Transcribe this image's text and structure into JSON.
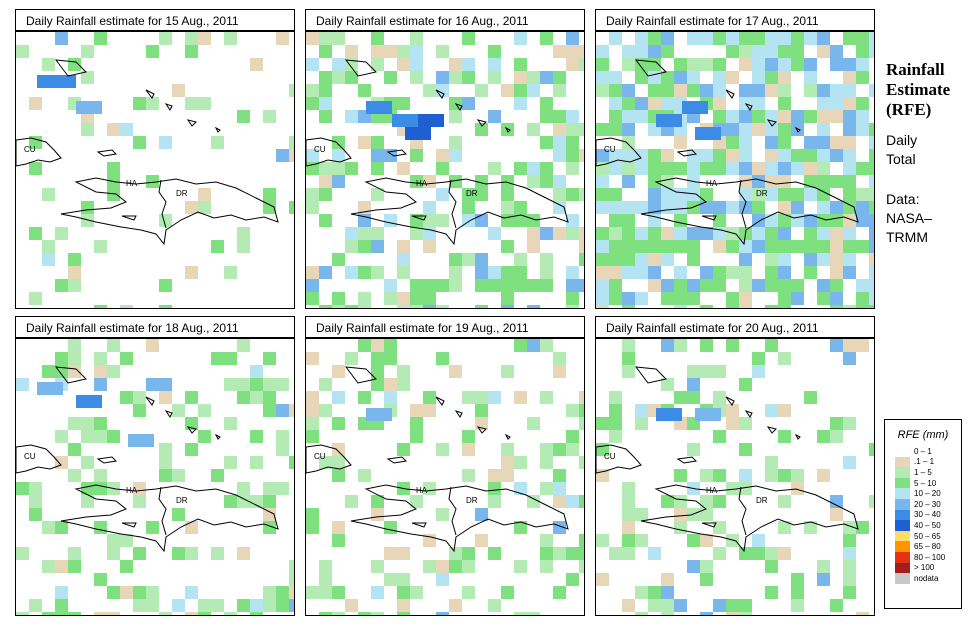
{
  "panels": [
    {
      "title": "Daily Rainfall estimate for  15 Aug., 2011",
      "density": 0.14,
      "wet": 0.05,
      "hot": [
        [
          1,
          3,
          3
        ],
        [
          2,
          3,
          3
        ],
        [
          4,
          5,
          2
        ]
      ],
      "seed": 15
    },
    {
      "title": "Daily Rainfall estimate for  16 Aug., 2011",
      "density": 0.46,
      "wet": 0.25,
      "hot": [
        [
          7,
          7,
          4
        ],
        [
          8,
          6,
          4
        ],
        [
          6,
          6,
          3
        ],
        [
          4,
          5,
          3
        ]
      ],
      "seed": 16
    },
    {
      "title": "Daily Rainfall estimate for  17 Aug., 2011",
      "density": 0.78,
      "wet": 0.42,
      "hot": [
        [
          6,
          5,
          3
        ],
        [
          7,
          7,
          3
        ],
        [
          4,
          6,
          3
        ]
      ],
      "seed": 17
    },
    {
      "title": "Daily Rainfall estimate for  18 Aug., 2011",
      "density": 0.3,
      "wet": 0.12,
      "hot": [
        [
          1,
          3,
          2
        ],
        [
          4,
          4,
          3
        ],
        [
          8,
          7,
          2
        ]
      ],
      "seed": 18
    },
    {
      "title": "Daily Rainfall estimate for  19 Aug., 2011",
      "density": 0.3,
      "wet": 0.08,
      "hot": [
        [
          4,
          5,
          2
        ]
      ],
      "seed": 19
    },
    {
      "title": "Daily Rainfall estimate for  20 Aug., 2011",
      "density": 0.27,
      "wet": 0.1,
      "hot": [
        [
          4,
          5,
          3
        ],
        [
          7,
          5,
          2
        ]
      ],
      "seed": 20
    }
  ],
  "map_labels": {
    "cuba": "CU",
    "haiti": "HA",
    "dominican_republic": "DR"
  },
  "sidebar": {
    "title_lines": [
      "Rainfall",
      "Estimate",
      "(RFE)"
    ],
    "daily_lines": [
      "Daily",
      "Total"
    ],
    "data_lines": [
      "Data:",
      "NASA–",
      "TRMM"
    ]
  },
  "legend": {
    "title": "RFE (mm)",
    "items": [
      {
        "label": "0 – 1",
        "color": "#ffffff"
      },
      {
        "label": ".1 – 1",
        "color": "#e8d6b8"
      },
      {
        "label": "1 – 5",
        "color": "#b4ebb4"
      },
      {
        "label": "5 – 10",
        "color": "#7ee07e"
      },
      {
        "label": "10 – 20",
        "color": "#b4e4f2"
      },
      {
        "label": "20 – 30",
        "color": "#78b6ec"
      },
      {
        "label": "30 – 40",
        "color": "#3c8ce6"
      },
      {
        "label": "40 – 50",
        "color": "#1e5fd2"
      },
      {
        "label": "50 – 65",
        "color": "#ffdc64"
      },
      {
        "label": "65 – 80",
        "color": "#ff9600"
      },
      {
        "label": "80 – 100",
        "color": "#e63214"
      },
      {
        "label": "> 100",
        "color": "#a01e1e"
      },
      {
        "label": "nodata",
        "color": "#c8c8c8"
      }
    ]
  }
}
